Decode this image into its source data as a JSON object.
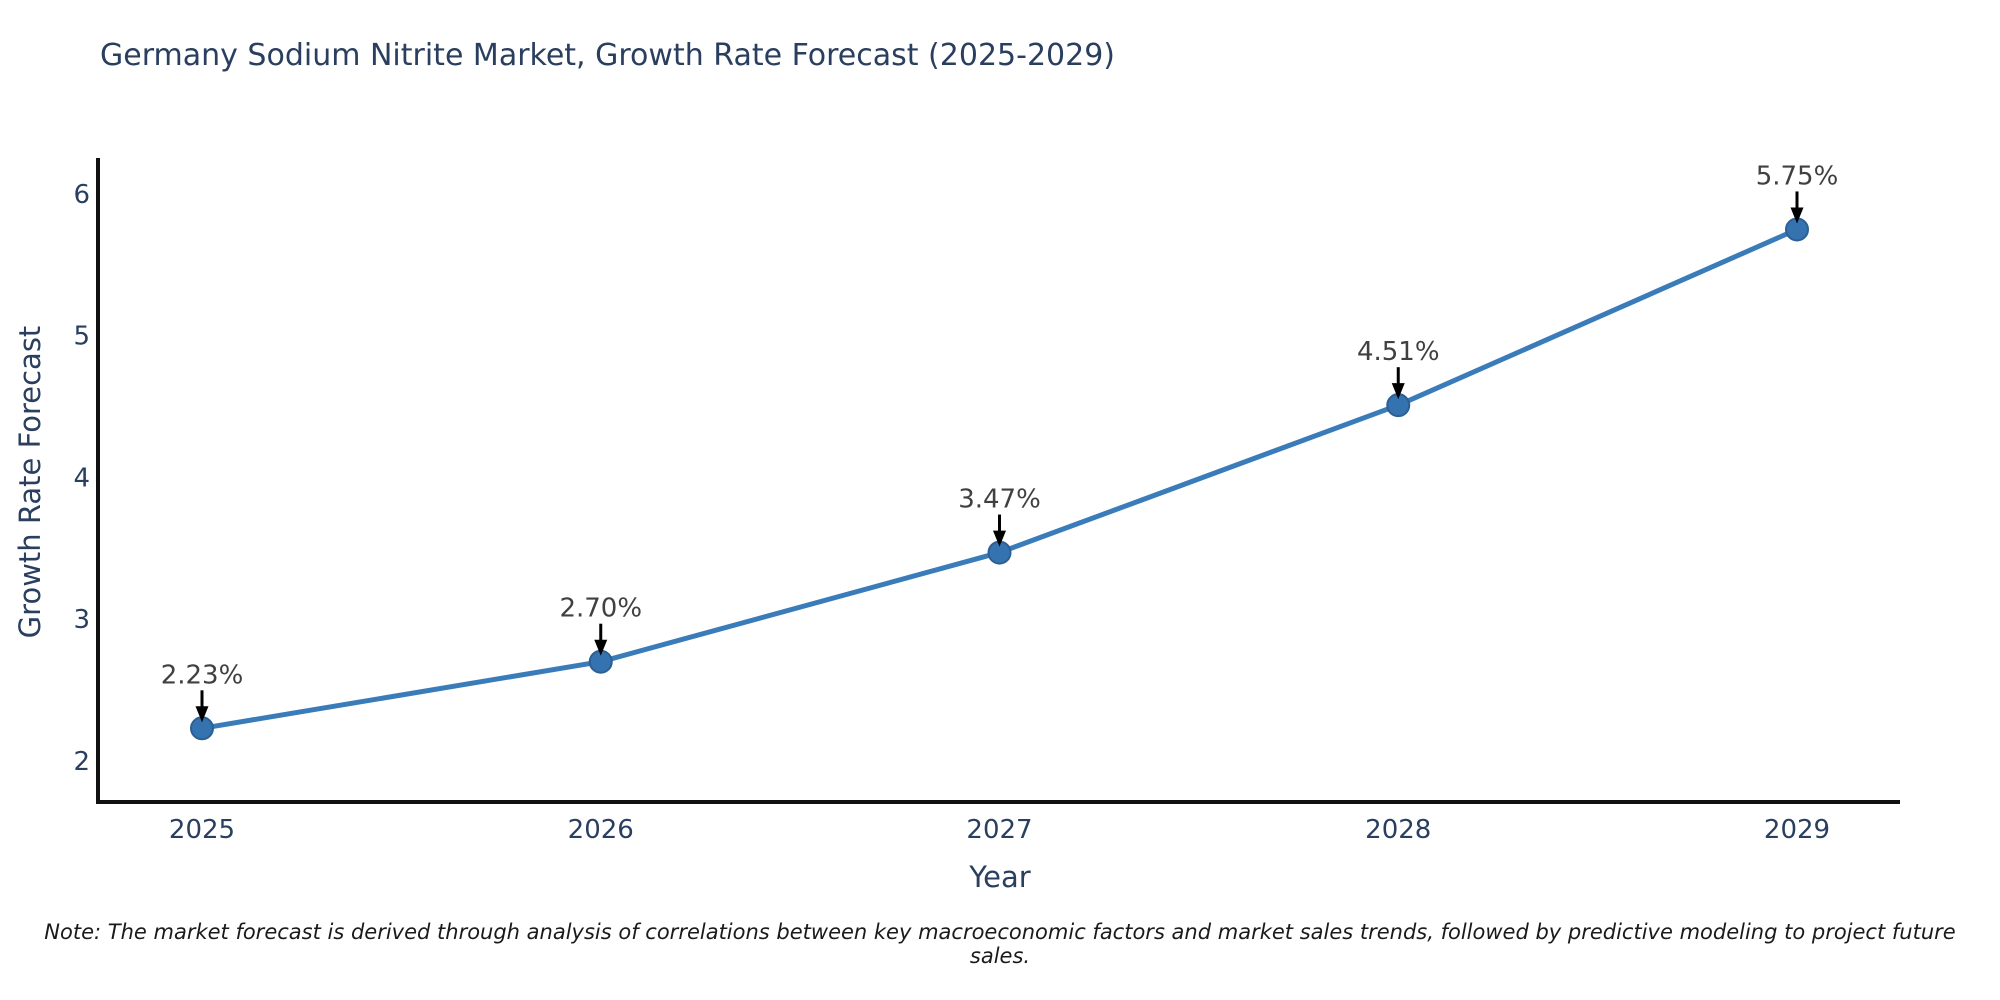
{
  "note": "Note: The market forecast is derived through analysis of correlations between key macroeconomic factors and market sales trends, followed by predictive modeling to project future sales.",
  "chart_data": {
    "type": "line",
    "title": "Germany Sodium Nitrite Market, Growth Rate Forecast (2025-2029)",
    "xlabel": "Year",
    "ylabel": "Growth Rate Forecast",
    "x": [
      2025,
      2026,
      2027,
      2028,
      2029
    ],
    "values": [
      2.23,
      2.7,
      3.47,
      4.51,
      5.75
    ],
    "point_labels": [
      "2.23%",
      "2.70%",
      "3.47%",
      "4.51%",
      "5.75%"
    ],
    "xticks": [
      "2025",
      "2026",
      "2027",
      "2028",
      "2029"
    ],
    "yticks": [
      2,
      3,
      4,
      5,
      6
    ],
    "ylim": [
      1.71,
      6.24
    ],
    "grid": false,
    "legend": "none",
    "line_color": "#3a7cba",
    "marker_color": "#3572b0",
    "marker_stroke_color": "#2c5f94",
    "annotation_text_color": "#404040",
    "annotation_arrow_color": "#000000",
    "axis_color": "#111111",
    "tick_label_color": "#2a3f5f"
  }
}
